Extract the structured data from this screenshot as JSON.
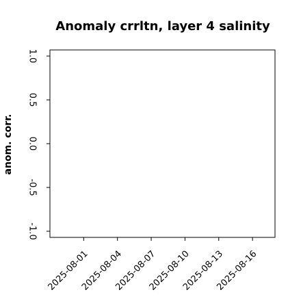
{
  "chart_data": {
    "type": "line",
    "title": "Anomaly crrltn, layer 4 salinity",
    "ylabel": "anom. corr.",
    "x": [],
    "series": [],
    "xlim": [
      "2025-07-29",
      "2025-08-18"
    ],
    "xticks": [
      "2025-08-01",
      "2025-08-04",
      "2025-08-07",
      "2025-08-10",
      "2025-08-13",
      "2025-08-16"
    ],
    "xtick_colors": [
      "#000000",
      "#000000",
      "#228b22",
      "#000000",
      "#000000",
      "#000000"
    ],
    "ylim": [
      -1.07,
      1.07
    ],
    "yticks": [
      {
        "value": -1,
        "label": "-1.0"
      },
      {
        "value": -0.5,
        "label": "-0.5"
      },
      {
        "value": 0,
        "label": "0.0"
      },
      {
        "value": 0.5,
        "label": "0.5"
      },
      {
        "value": 1,
        "label": "1.0"
      }
    ],
    "grid": false
  }
}
